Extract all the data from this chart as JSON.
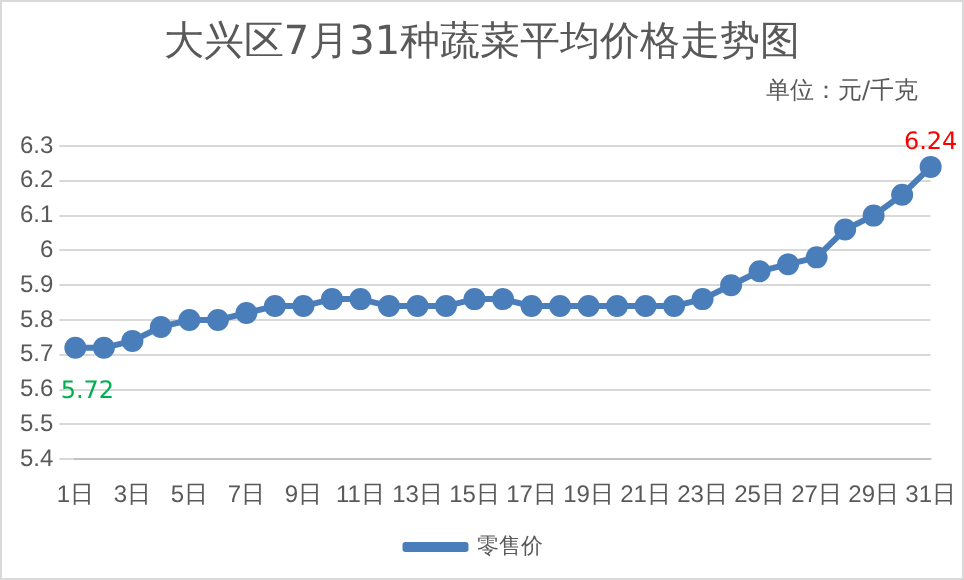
{
  "chart_data": {
    "type": "line",
    "title": "大兴区7月31种蔬菜平均价格走势图",
    "annotations": [
      "单位：元/千克"
    ],
    "categories": [
      "1日",
      null,
      "3日",
      null,
      "5日",
      null,
      "7日",
      null,
      "9日",
      null,
      "11日",
      null,
      "13日",
      null,
      "15日",
      null,
      "17日",
      null,
      "19日",
      null,
      "21日",
      null,
      "23日",
      null,
      "25日",
      null,
      "27日",
      null,
      "29日",
      null,
      "31日"
    ],
    "series": [
      {
        "name": "零售价",
        "color": "#4a7ebb",
        "values": [
          5.72,
          5.72,
          5.74,
          5.78,
          5.8,
          5.8,
          5.82,
          5.84,
          5.84,
          5.86,
          5.86,
          5.84,
          5.84,
          5.84,
          5.86,
          5.86,
          5.84,
          5.84,
          5.84,
          5.84,
          5.84,
          5.84,
          5.86,
          5.9,
          5.94,
          5.96,
          5.98,
          6.06,
          6.1,
          6.16,
          6.24
        ],
        "value_labels": [
          "5.72",
          null,
          null,
          null,
          null,
          null,
          null,
          null,
          null,
          null,
          null,
          null,
          null,
          null,
          null,
          null,
          null,
          null,
          null,
          null,
          null,
          null,
          null,
          null,
          null,
          null,
          null,
          null,
          null,
          null,
          "6.24"
        ]
      }
    ],
    "ylim": [
      5.4,
      6.3
    ],
    "yticks": [
      5.4,
      5.5,
      5.6,
      5.7,
      5.8,
      5.9,
      6,
      6.1,
      6.2,
      6.3
    ],
    "grid": "y",
    "legend": "bottom",
    "marker": "circle",
    "line_style": "solid"
  }
}
